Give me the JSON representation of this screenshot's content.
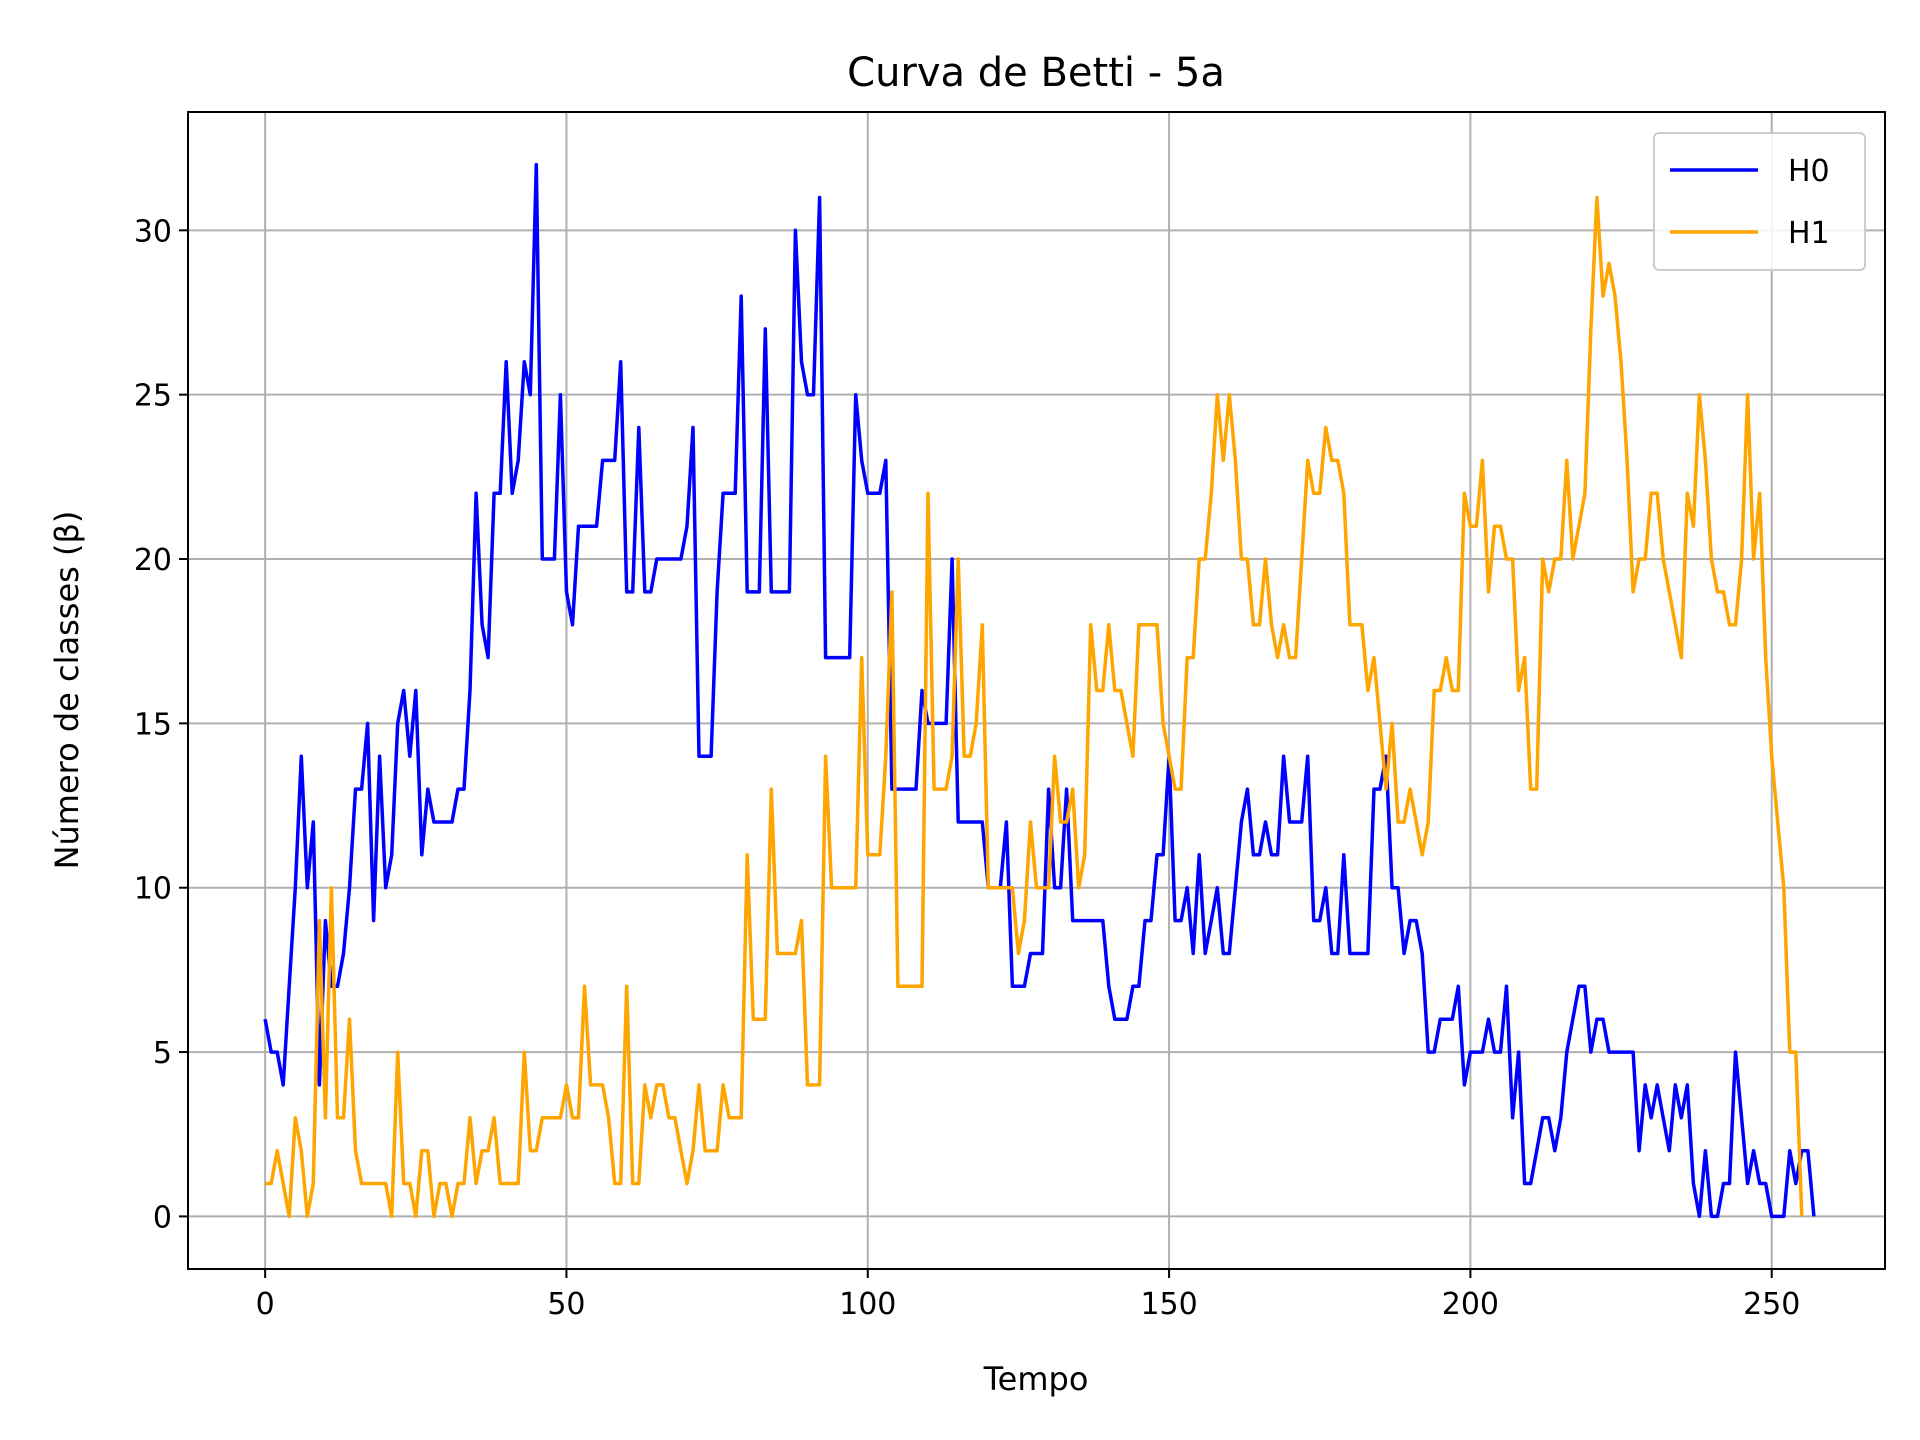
{
  "chart_data": {
    "type": "line",
    "title": "Curva de Betti - 5a",
    "xlabel": "Tempo",
    "ylabel": "Número de classes (β)",
    "xlim": [
      -12.8,
      268.8
    ],
    "ylim": [
      -1.6,
      33.6
    ],
    "xticks": [
      0,
      50,
      100,
      150,
      200,
      250
    ],
    "yticks": [
      0,
      5,
      10,
      15,
      20,
      25,
      30
    ],
    "grid": true,
    "legend_position": "top-right",
    "series": [
      {
        "name": "H0",
        "color": "#0000ff",
        "values": [
          6,
          5,
          5,
          4,
          7,
          10,
          14,
          10,
          12,
          4,
          9,
          7,
          7,
          8,
          10,
          13,
          13,
          15,
          9,
          14,
          10,
          11,
          15,
          16,
          14,
          16,
          11,
          13,
          12,
          12,
          12,
          12,
          13,
          13,
          16,
          22,
          18,
          17,
          22,
          22,
          26,
          22,
          23,
          26,
          25,
          32,
          20,
          20,
          20,
          25,
          19,
          18,
          21,
          21,
          21,
          21,
          23,
          23,
          23,
          26,
          19,
          19,
          24,
          19,
          19,
          20,
          20,
          20,
          20,
          20,
          21,
          24,
          14,
          14,
          14,
          19,
          22,
          22,
          22,
          28,
          19,
          19,
          19,
          27,
          19,
          19,
          19,
          19,
          30,
          26,
          25,
          25,
          31,
          17,
          17,
          17,
          17,
          17,
          25,
          23,
          22,
          22,
          22,
          23,
          13,
          13,
          13,
          13,
          13,
          16,
          15,
          15,
          15,
          15,
          20,
          12,
          12,
          12,
          12,
          12,
          10,
          10,
          10,
          12,
          7,
          7,
          7,
          8,
          8,
          8,
          13,
          10,
          10,
          13,
          9,
          9,
          9,
          9,
          9,
          9,
          7,
          6,
          6,
          6,
          7,
          7,
          9,
          9,
          11,
          11,
          14,
          9,
          9,
          10,
          8,
          11,
          8,
          9,
          10,
          8,
          8,
          10,
          12,
          13,
          11,
          11,
          12,
          11,
          11,
          14,
          12,
          12,
          12,
          14,
          9,
          9,
          10,
          8,
          8,
          11,
          8,
          8,
          8,
          8,
          13,
          13,
          14,
          10,
          10,
          8,
          9,
          9,
          8,
          5,
          5,
          6,
          6,
          6,
          7,
          4,
          5,
          5,
          5,
          6,
          5,
          5,
          7,
          3,
          5,
          1,
          1,
          2,
          3,
          3,
          2,
          3,
          5,
          6,
          7,
          7,
          5,
          6,
          6,
          5,
          5,
          5,
          5,
          5,
          2,
          4,
          3,
          4,
          3,
          2,
          4,
          3,
          4,
          1,
          0,
          2,
          0,
          0,
          1,
          1,
          5,
          3,
          1,
          2,
          1,
          1,
          0,
          0,
          0,
          2,
          1,
          2,
          2,
          0
        ]
      },
      {
        "name": "H1",
        "color": "#ffa500",
        "values": [
          1,
          1,
          2,
          1,
          0,
          3,
          2,
          0,
          1,
          9,
          3,
          10,
          3,
          3,
          6,
          2,
          1,
          1,
          1,
          1,
          1,
          0,
          5,
          1,
          1,
          0,
          2,
          2,
          0,
          1,
          1,
          0,
          1,
          1,
          3,
          1,
          2,
          2,
          3,
          1,
          1,
          1,
          1,
          5,
          2,
          2,
          3,
          3,
          3,
          3,
          4,
          3,
          3,
          7,
          4,
          4,
          4,
          3,
          1,
          1,
          7,
          1,
          1,
          4,
          3,
          4,
          4,
          3,
          3,
          2,
          1,
          2,
          4,
          2,
          2,
          2,
          4,
          3,
          3,
          3,
          11,
          6,
          6,
          6,
          13,
          8,
          8,
          8,
          8,
          9,
          4,
          4,
          4,
          14,
          10,
          10,
          10,
          10,
          10,
          17,
          11,
          11,
          11,
          14,
          19,
          7,
          7,
          7,
          7,
          7,
          22,
          13,
          13,
          13,
          14,
          20,
          14,
          14,
          15,
          18,
          10,
          10,
          10,
          10,
          10,
          8,
          9,
          12,
          10,
          10,
          10,
          14,
          12,
          12,
          13,
          10,
          11,
          18,
          16,
          16,
          18,
          16,
          16,
          15,
          14,
          18,
          18,
          18,
          18,
          15,
          14,
          13,
          13,
          17,
          17,
          20,
          20,
          22,
          25,
          23,
          25,
          23,
          20,
          20,
          18,
          18,
          20,
          18,
          17,
          18,
          17,
          17,
          20,
          23,
          22,
          22,
          24,
          23,
          23,
          22,
          18,
          18,
          18,
          16,
          17,
          15,
          13,
          15,
          12,
          12,
          13,
          12,
          11,
          12,
          16,
          16,
          17,
          16,
          16,
          22,
          21,
          21,
          23,
          19,
          21,
          21,
          20,
          20,
          16,
          17,
          13,
          13,
          20,
          19,
          20,
          20,
          23,
          20,
          21,
          22,
          27,
          31,
          28,
          29,
          28,
          26,
          23,
          19,
          20,
          20,
          22,
          22,
          20,
          19,
          18,
          17,
          22,
          21,
          25,
          23,
          20,
          19,
          19,
          18,
          18,
          20,
          25,
          20,
          22,
          17,
          14,
          12,
          10,
          5,
          5,
          0
        ]
      }
    ]
  }
}
